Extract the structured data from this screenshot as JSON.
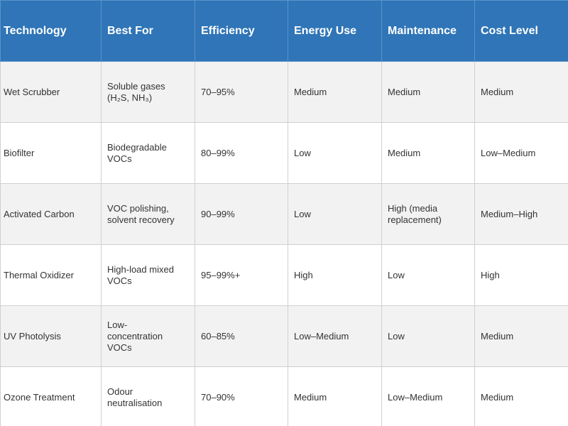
{
  "table": {
    "header": [
      "Technology",
      "Best For",
      "Efficiency",
      "Energy Use",
      "Maintenance",
      "Cost Level"
    ],
    "rows": [
      [
        "Wet Scrubber",
        "Soluble gases (H₂S, NH₃)",
        "70–95%",
        "Medium",
        "Medium",
        "Medium"
      ],
      [
        "Biofilter",
        "Biodegradable VOCs",
        "80–99%",
        "Low",
        "Medium",
        "Low–Medium"
      ],
      [
        "Activated Carbon",
        "VOC polishing, solvent recovery",
        "90–99%",
        "Low",
        "High (media replacement)",
        "Medium–High"
      ],
      [
        "Thermal Oxidizer",
        "High-load mixed VOCs",
        "95–99%+",
        "High",
        "Low",
        "High"
      ],
      [
        "UV Photolysis",
        "Low-concentration VOCs",
        "60–85%",
        "Low–Medium",
        "Low",
        "Medium"
      ],
      [
        "Ozone Treatment",
        "Odour neutralisation",
        "70–90%",
        "Medium",
        "Low–Medium",
        "Medium"
      ]
    ]
  }
}
